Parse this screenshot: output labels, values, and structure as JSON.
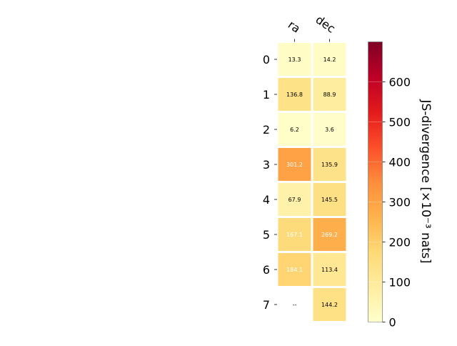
{
  "chart_data": {
    "type": "heatmap",
    "columns": [
      "ra",
      "dec"
    ],
    "rows": [
      "0",
      "1",
      "2",
      "3",
      "4",
      "5",
      "6",
      "7"
    ],
    "values": [
      [
        13.3,
        14.2
      ],
      [
        136.8,
        88.9
      ],
      [
        6.2,
        3.6
      ],
      [
        301.2,
        135.9
      ],
      [
        67.9,
        145.5
      ],
      [
        167.1,
        269.2
      ],
      [
        184.1,
        113.4
      ],
      [
        null,
        144.2
      ]
    ],
    "cell_labels": [
      [
        "13.3",
        "14.2"
      ],
      [
        "136.8",
        "88.9"
      ],
      [
        "6.2",
        "3.6"
      ],
      [
        "301.2",
        "135.9"
      ],
      [
        "67.9",
        "145.5"
      ],
      [
        "167.1",
        "269.2"
      ],
      [
        "184.1",
        "113.4"
      ],
      [
        "--",
        "144.2"
      ]
    ],
    "white_label_cells": [
      [
        3,
        0
      ],
      [
        5,
        0
      ],
      [
        5,
        1
      ],
      [
        6,
        0
      ]
    ],
    "colormap": "YlOrRd",
    "colorbar": {
      "label": "JS-divergence [×10⁻³ nats]",
      "range": [
        0,
        700
      ],
      "ticks": [
        0,
        100,
        200,
        300,
        400,
        500,
        600
      ],
      "tick_labels": [
        "0",
        "100",
        "200",
        "300",
        "400",
        "500",
        "600"
      ]
    },
    "grid": false
  }
}
